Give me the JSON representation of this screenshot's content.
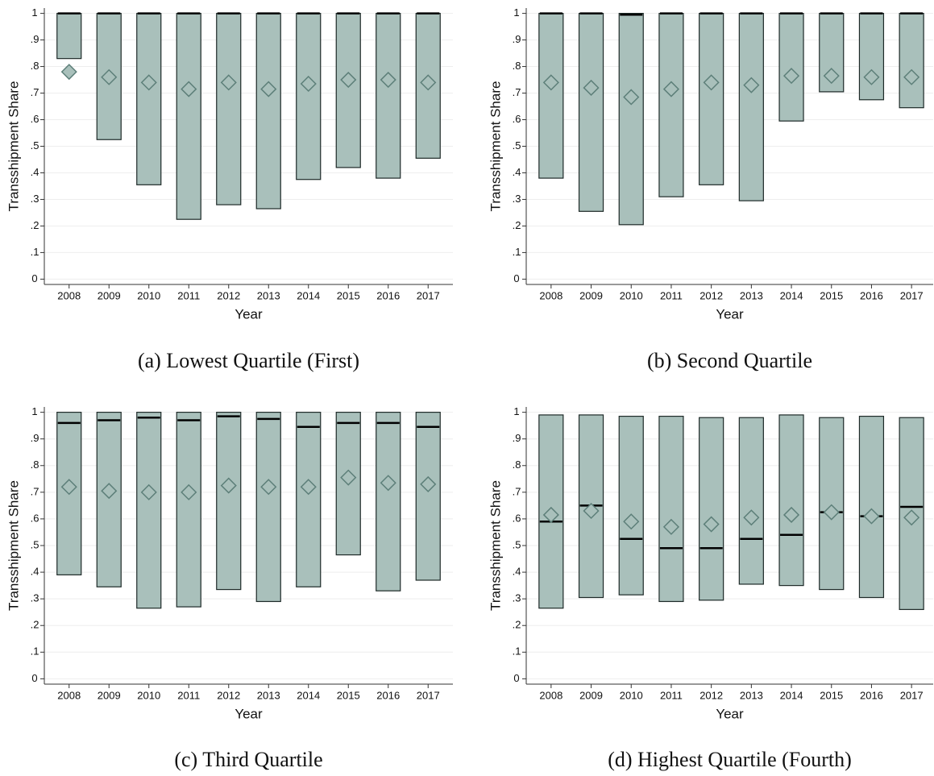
{
  "chart_data": [
    {
      "type": "box",
      "caption": "(a) Lowest Quartile (First)",
      "xlabel": "Year",
      "ylabel": "Transshipment Share",
      "categories": [
        "2008",
        "2009",
        "2010",
        "2011",
        "2012",
        "2013",
        "2014",
        "2015",
        "2016",
        "2017"
      ],
      "q1": [
        0.83,
        0.525,
        0.355,
        0.225,
        0.28,
        0.265,
        0.375,
        0.42,
        0.38,
        0.455
      ],
      "q3": [
        1,
        1,
        1,
        1,
        1,
        1,
        1,
        1,
        1,
        1
      ],
      "median": [
        1,
        1,
        1,
        1,
        1,
        1,
        1,
        1,
        1,
        1
      ],
      "mean": [
        0.78,
        0.76,
        0.74,
        0.715,
        0.74,
        0.715,
        0.735,
        0.75,
        0.75,
        0.74
      ],
      "color": "#a9c0bb",
      "ylim": [
        -0.02,
        1.02
      ],
      "yticks": [
        0,
        {
          "value": 0.1,
          "label": ".1"
        },
        {
          "value": 0.2,
          "label": ".2"
        },
        {
          "value": 0.3,
          "label": ".3"
        },
        {
          "value": 0.4,
          "label": ".4"
        },
        {
          "value": 0.5,
          "label": ".5"
        },
        {
          "value": 0.6,
          "label": ".6"
        },
        {
          "value": 0.7,
          "label": ".7"
        },
        {
          "value": 0.8,
          "label": ".8"
        },
        {
          "value": 0.9,
          "label": ".9"
        },
        1
      ],
      "grid": true
    },
    {
      "type": "box",
      "caption": "(b) Second Quartile",
      "xlabel": "Year",
      "ylabel": "Transshipment Share",
      "categories": [
        "2008",
        "2009",
        "2010",
        "2011",
        "2012",
        "2013",
        "2014",
        "2015",
        "2016",
        "2017"
      ],
      "q1": [
        0.38,
        0.255,
        0.205,
        0.31,
        0.355,
        0.295,
        0.595,
        0.705,
        0.675,
        0.645
      ],
      "q3": [
        1,
        1,
        1,
        1,
        1,
        1,
        1,
        1,
        1,
        1
      ],
      "median": [
        1,
        1,
        0.995,
        1,
        1,
        1,
        1,
        1,
        1,
        1
      ],
      "mean": [
        0.74,
        0.72,
        0.685,
        0.715,
        0.74,
        0.73,
        0.765,
        0.765,
        0.76,
        0.76
      ],
      "color": "#a9c0bb",
      "ylim": [
        -0.02,
        1.02
      ],
      "yticks": [
        0,
        {
          "value": 0.1,
          "label": ".1"
        },
        {
          "value": 0.2,
          "label": ".2"
        },
        {
          "value": 0.3,
          "label": ".3"
        },
        {
          "value": 0.4,
          "label": ".4"
        },
        {
          "value": 0.5,
          "label": ".5"
        },
        {
          "value": 0.6,
          "label": ".6"
        },
        {
          "value": 0.7,
          "label": ".7"
        },
        {
          "value": 0.8,
          "label": ".8"
        },
        {
          "value": 0.9,
          "label": ".9"
        },
        1
      ],
      "grid": true
    },
    {
      "type": "box",
      "caption": "(c) Third Quartile",
      "xlabel": "Year",
      "ylabel": "Transshipment Share",
      "categories": [
        "2008",
        "2009",
        "2010",
        "2011",
        "2012",
        "2013",
        "2014",
        "2015",
        "2016",
        "2017"
      ],
      "q1": [
        0.39,
        0.345,
        0.265,
        0.27,
        0.335,
        0.29,
        0.345,
        0.465,
        0.33,
        0.37
      ],
      "q3": [
        1,
        1,
        1,
        1,
        1,
        1,
        1,
        1,
        1,
        1
      ],
      "median": [
        0.96,
        0.97,
        0.98,
        0.97,
        0.985,
        0.975,
        0.945,
        0.96,
        0.96,
        0.945
      ],
      "mean": [
        0.72,
        0.705,
        0.7,
        0.7,
        0.725,
        0.72,
        0.72,
        0.755,
        0.735,
        0.73
      ],
      "color": "#a9c0bb",
      "ylim": [
        -0.02,
        1.02
      ],
      "yticks": [
        0,
        {
          "value": 0.1,
          "label": ".1"
        },
        {
          "value": 0.2,
          "label": ".2"
        },
        {
          "value": 0.3,
          "label": ".3"
        },
        {
          "value": 0.4,
          "label": ".4"
        },
        {
          "value": 0.5,
          "label": ".5"
        },
        {
          "value": 0.6,
          "label": ".6"
        },
        {
          "value": 0.7,
          "label": ".7"
        },
        {
          "value": 0.8,
          "label": ".8"
        },
        {
          "value": 0.9,
          "label": ".9"
        },
        1
      ],
      "grid": true
    },
    {
      "type": "box",
      "caption": "(d) Highest Quartile (Fourth)",
      "xlabel": "Year",
      "ylabel": "Transshipment Share",
      "categories": [
        "2008",
        "2009",
        "2010",
        "2011",
        "2012",
        "2013",
        "2014",
        "2015",
        "2016",
        "2017"
      ],
      "q1": [
        0.265,
        0.305,
        0.315,
        0.29,
        0.295,
        0.355,
        0.35,
        0.335,
        0.305,
        0.26
      ],
      "q3": [
        0.99,
        0.99,
        0.985,
        0.985,
        0.98,
        0.98,
        0.99,
        0.98,
        0.985,
        0.98
      ],
      "median": [
        0.59,
        0.65,
        0.525,
        0.49,
        0.49,
        0.525,
        0.54,
        0.625,
        0.61,
        0.645
      ],
      "mean": [
        0.615,
        0.63,
        0.59,
        0.57,
        0.58,
        0.605,
        0.615,
        0.625,
        0.61,
        0.605
      ],
      "color": "#a9c0bb",
      "ylim": [
        -0.02,
        1.02
      ],
      "yticks": [
        0,
        {
          "value": 0.1,
          "label": ".1"
        },
        {
          "value": 0.2,
          "label": ".2"
        },
        {
          "value": 0.3,
          "label": ".3"
        },
        {
          "value": 0.4,
          "label": ".4"
        },
        {
          "value": 0.5,
          "label": ".5"
        },
        {
          "value": 0.6,
          "label": ".6"
        },
        {
          "value": 0.7,
          "label": ".7"
        },
        {
          "value": 0.8,
          "label": ".8"
        },
        {
          "value": 0.9,
          "label": ".9"
        },
        1
      ],
      "grid": true
    }
  ]
}
